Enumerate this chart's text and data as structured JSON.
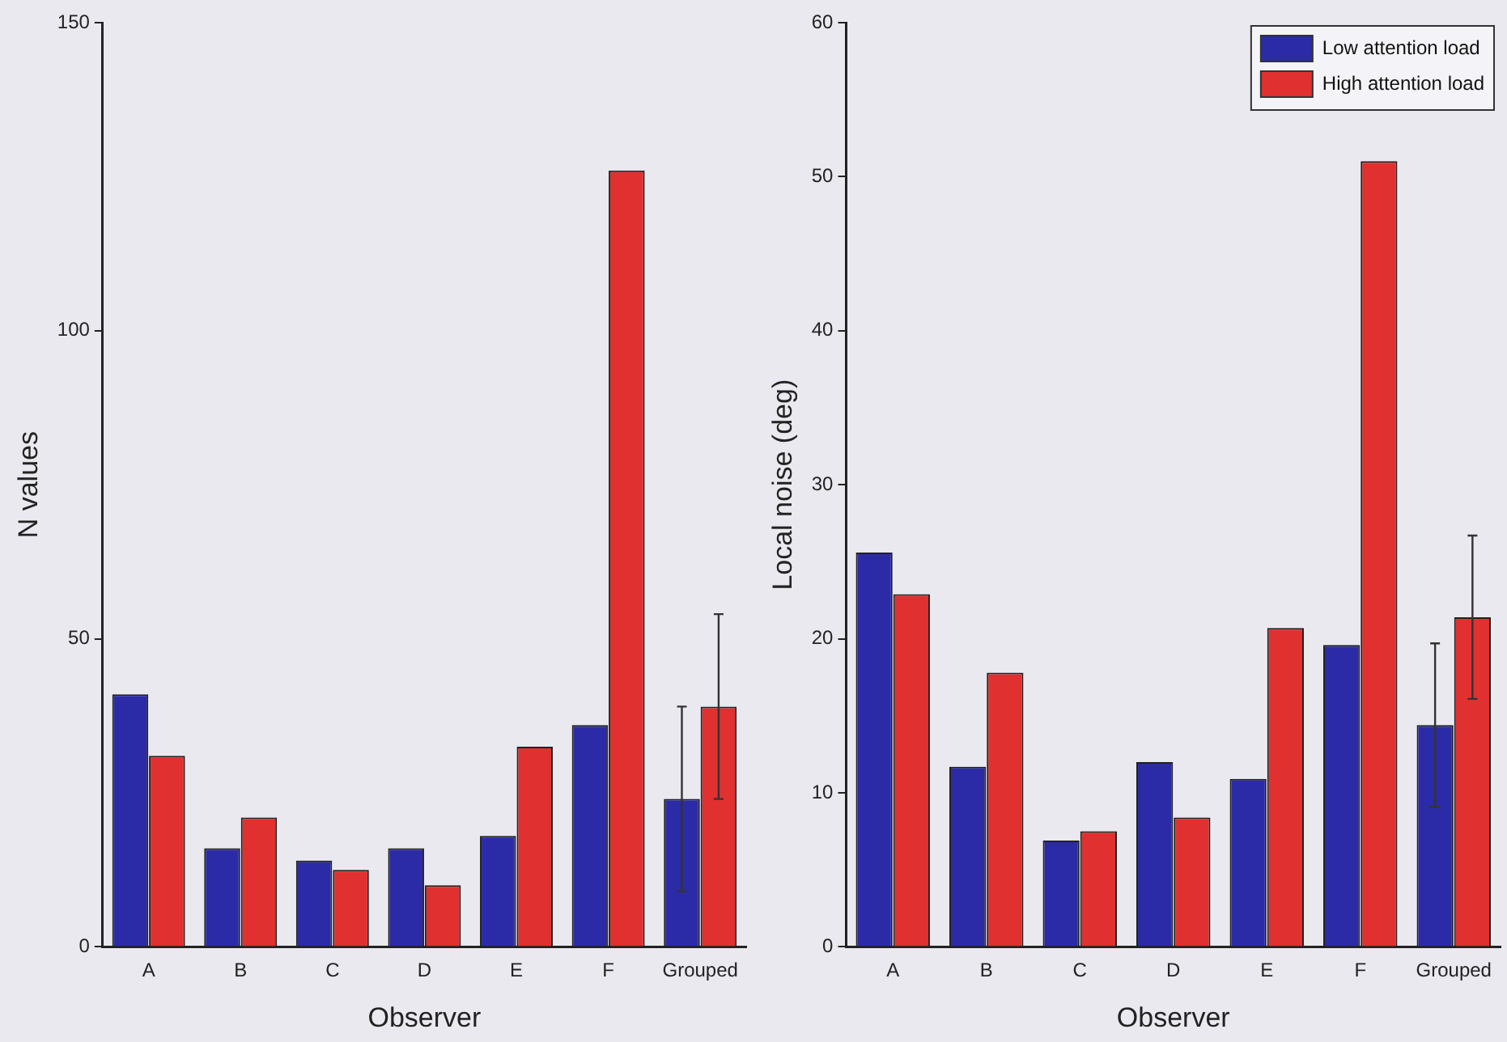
{
  "chart_data": [
    {
      "type": "bar",
      "xlabel": "Observer",
      "ylabel": "N values",
      "categories": [
        "A",
        "B",
        "C",
        "D",
        "E",
        "F",
        "Grouped"
      ],
      "ylim": [
        0,
        150
      ],
      "yticks": [
        0,
        50,
        100,
        150
      ],
      "grid": false,
      "series": [
        {
          "color": "#2b2ba8",
          "values": [
            41,
            16,
            14,
            16,
            18,
            36,
            24
          ],
          "errors": [
            null,
            null,
            null,
            null,
            null,
            null,
            15
          ]
        },
        {
          "color": "#e03030",
          "values": [
            31,
            21,
            12.5,
            10,
            32.5,
            126,
            39
          ],
          "errors": [
            null,
            null,
            null,
            null,
            null,
            null,
            15
          ]
        }
      ]
    },
    {
      "type": "bar",
      "xlabel": "Observer",
      "ylabel": "Local noise (deg)",
      "categories": [
        "A",
        "B",
        "C",
        "D",
        "E",
        "F",
        "Grouped"
      ],
      "ylim": [
        0,
        60
      ],
      "yticks": [
        0,
        10,
        20,
        30,
        40,
        50,
        60
      ],
      "grid": false,
      "legend": "top right",
      "series": [
        {
          "name": "Low attention load",
          "color": "#2b2ba8",
          "values": [
            25.6,
            11.7,
            6.9,
            12,
            10.9,
            19.6,
            14.4
          ],
          "errors": [
            null,
            null,
            null,
            null,
            null,
            null,
            5.3
          ]
        },
        {
          "name": "High attention load",
          "color": "#e03030",
          "values": [
            22.9,
            17.8,
            7.5,
            8.4,
            20.7,
            51,
            21.4
          ],
          "errors": [
            null,
            null,
            null,
            null,
            null,
            null,
            5.3
          ]
        }
      ]
    }
  ]
}
